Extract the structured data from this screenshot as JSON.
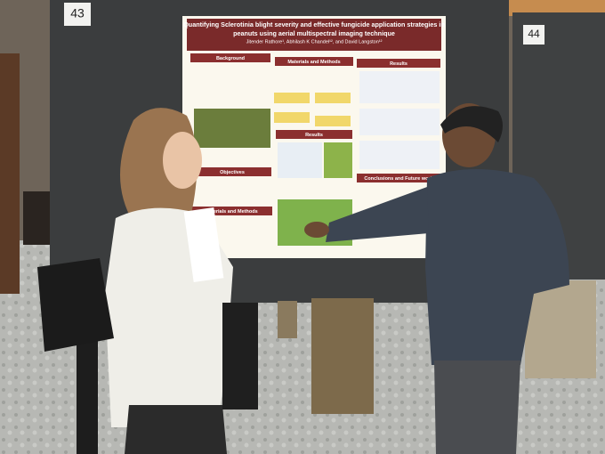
{
  "signs": {
    "left": "43",
    "right": "44"
  },
  "poster": {
    "title_lines": [
      "Quantifying Sclerotinia blight severity and effective fungicide application strategies in",
      "peanuts using aerial multispectral imaging technique"
    ],
    "authors": "Jitender Rathore¹, Abhilash K Chandel¹², and David Langston¹²",
    "sections": [
      "Background",
      "Materials and Methods",
      "Results",
      "Objectives",
      "Materials and Methods",
      "Results",
      "Conclusions and Future work"
    ]
  }
}
